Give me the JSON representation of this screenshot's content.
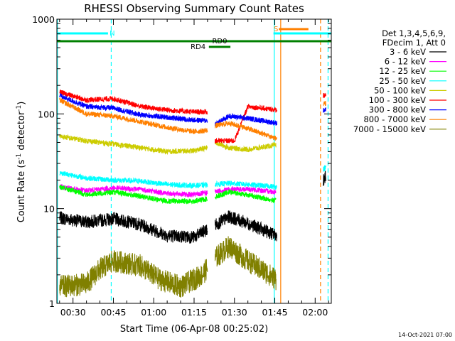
{
  "chart_data": {
    "type": "line",
    "title": "RHESSI Observing Summary Count Rates",
    "xlabel": "Start Time (06-Apr-08 00:25:02)",
    "ylabel": "Count Rate (s",
    "ylabel_sup1": "-1",
    "ylabel_mid": " detector",
    "ylabel_sup2": "-1",
    "ylabel_end": ")",
    "yscale": "log",
    "xlim_minutes": [
      24,
      126
    ],
    "ylim": [
      1,
      1000
    ],
    "x_tick_labels": [
      "00:30",
      "00:45",
      "01:00",
      "01:15",
      "01:30",
      "01:45",
      "02:00"
    ],
    "x_tick_minutes": [
      30,
      45,
      60,
      75,
      90,
      105,
      120
    ],
    "y_tick_labels": [
      "1",
      "10",
      "100",
      "1000"
    ],
    "y_tick_values": [
      1,
      10,
      100,
      1000
    ],
    "legend_header": [
      "Det 1,3,4,5,6,9,",
      "FDecim 1, Att 0"
    ],
    "legend_placement": "outside-right",
    "segments": [
      [
        24.0,
        80.0
      ],
      [
        82.8,
        105.8
      ],
      [
        123.0,
        124.6
      ]
    ],
    "series": [
      {
        "name": "3 - 6 keV",
        "color": "#000000",
        "x": [
          25,
          35,
          45,
          55,
          65,
          75,
          82,
          88,
          95,
          105.5,
          124
        ],
        "values": [
          8,
          7.2,
          7.8,
          6.8,
          5.2,
          5.0,
          6.5,
          8.2,
          7.0,
          5.2,
          22
        ]
      },
      {
        "name": "6 - 12 keV",
        "color": "#ff00ff",
        "x": [
          25,
          35,
          45,
          55,
          65,
          75,
          82,
          88,
          95,
          105.5
        ],
        "values": [
          17,
          15.5,
          16.5,
          16,
          14.5,
          14,
          15,
          16,
          16,
          15
        ]
      },
      {
        "name": "12 - 25 keV",
        "color": "#00ff00",
        "x": [
          25,
          35,
          45,
          55,
          65,
          75,
          82,
          88,
          95,
          105.5
        ],
        "values": [
          17,
          14,
          15,
          13.5,
          12,
          12,
          13,
          15,
          14,
          12
        ]
      },
      {
        "name": "25 - 50 keV",
        "color": "#00ffff",
        "x": [
          25,
          35,
          45,
          55,
          65,
          75,
          82,
          88,
          95,
          105.5,
          124
        ],
        "values": [
          24,
          21,
          20,
          19.5,
          18,
          17.5,
          18,
          18.5,
          18,
          17,
          27
        ]
      },
      {
        "name": "50 - 100 keV",
        "color": "#cccc00",
        "x": [
          25,
          35,
          45,
          55,
          65,
          75,
          80,
          82.8,
          88,
          95,
          105.5
        ],
        "values": [
          58,
          52,
          48,
          44,
          40,
          41,
          44,
          50,
          44,
          42,
          47
        ]
      },
      {
        "name": "100 - 300 keV",
        "color": "#ff0000",
        "x": [
          25,
          35,
          45,
          55,
          65,
          75,
          80,
          82.8,
          90,
          95,
          105.5,
          124
        ],
        "values": [
          170,
          140,
          145,
          120,
          110,
          105,
          105,
          52,
          52,
          120,
          110,
          160
        ]
      },
      {
        "name": "300 - 800 keV",
        "color": "#0000ff",
        "x": [
          25,
          35,
          45,
          55,
          65,
          75,
          80,
          82.8,
          88,
          95,
          105.5,
          124
        ],
        "values": [
          155,
          120,
          115,
          98,
          92,
          86,
          85,
          78,
          95,
          90,
          80,
          110
        ]
      },
      {
        "name": "800 - 7000 keV",
        "color": "#ff8000",
        "x": [
          25,
          35,
          45,
          55,
          65,
          75,
          80,
          82.8,
          88,
          95,
          105.5,
          124
        ],
        "values": [
          140,
          100,
          95,
          83,
          72,
          65,
          67,
          75,
          80,
          70,
          55,
          130
        ]
      },
      {
        "name": "7000 - 15000 keV",
        "color": "#808000",
        "x": [
          25,
          35,
          40,
          45,
          55,
          62,
          70,
          78,
          82.8,
          88,
          95,
          105.5
        ],
        "values": [
          1.5,
          1.6,
          2.3,
          2.8,
          2.5,
          1.8,
          1.5,
          2.0,
          3.0,
          4.0,
          2.8,
          1.8
        ]
      }
    ],
    "flags": {
      "night_bar": {
        "label": "N",
        "color": "#00ffff",
        "start": 24,
        "end": 43
      },
      "saa_bar": {
        "label": "S",
        "color": "#ff8000",
        "start": 106.5,
        "end": 117.5
      },
      "night_bar_2": {
        "color": "#00ffff",
        "start": 104.5,
        "end": 126
      },
      "rd0_bar": {
        "label": "RD0",
        "color": "#008000",
        "start": 24,
        "end": 126
      },
      "rd4_bar": {
        "label": "RD4",
        "color": "#008000",
        "start": 80.5,
        "end": 88.5
      }
    },
    "vlines": [
      {
        "minute": 24.2,
        "color": "#00ffff",
        "style": "solid"
      },
      {
        "minute": 44.2,
        "color": "#00ffff",
        "style": "dashed"
      },
      {
        "minute": 104.8,
        "color": "#00ffff",
        "style": "solid"
      },
      {
        "minute": 107.2,
        "color": "#ff8000",
        "style": "solid"
      },
      {
        "minute": 122.0,
        "color": "#ff8000",
        "style": "dashed"
      },
      {
        "minute": 124.8,
        "color": "#00ffff",
        "style": "dashed"
      }
    ],
    "timestamp": "14-Oct-2021 07:00"
  }
}
